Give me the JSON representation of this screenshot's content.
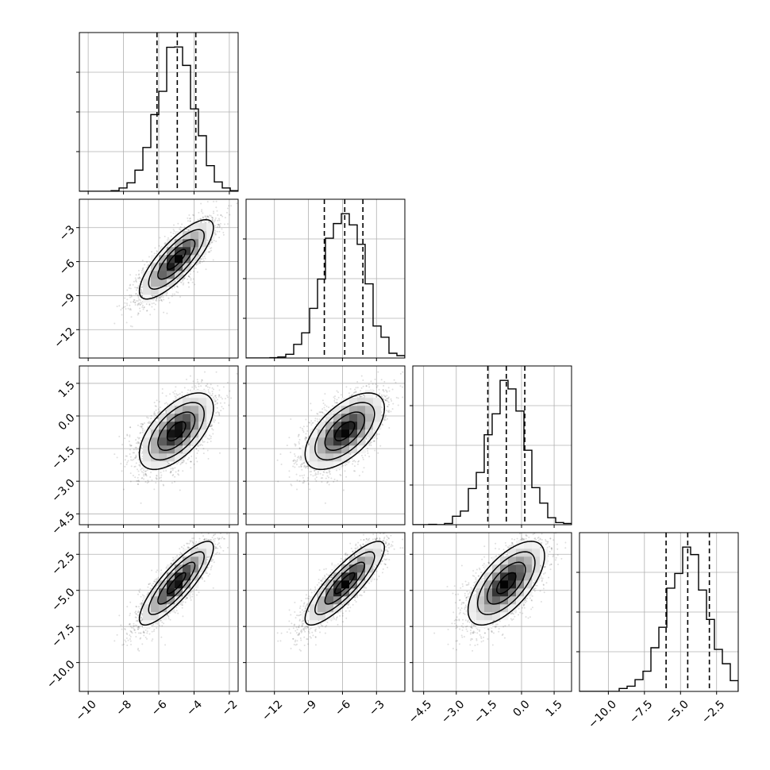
{
  "chart_data": {
    "type": "corner",
    "n_params": 4,
    "quantile_lines": "dashed",
    "grid": true,
    "params": [
      {
        "range": [
          -10.5,
          -1.5
        ],
        "x_ticks": [
          -10,
          -8,
          -6,
          -4,
          -2
        ],
        "x_tick_labels": [
          "−10",
          "−8",
          "−6",
          "−4",
          "−2"
        ],
        "mean": -5.0,
        "sd": 1.05,
        "quantiles": [
          -6.1,
          -4.95,
          -3.9
        ]
      },
      {
        "range": [
          -14.5,
          -0.5
        ],
        "x_ticks": [
          -12,
          -9,
          -6,
          -3
        ],
        "x_tick_labels": [
          "−12",
          "−9",
          "−6",
          "−3"
        ],
        "y_ticks": [
          -12,
          -9,
          -6,
          -3
        ],
        "y_tick_labels": [
          "−12",
          "−9",
          "−6",
          "−3"
        ],
        "mean": -5.8,
        "sd": 1.75,
        "quantiles": [
          -7.6,
          -5.8,
          -4.2
        ]
      },
      {
        "range": [
          -5.0,
          2.3
        ],
        "x_ticks": [
          -4.5,
          -3.0,
          -1.5,
          0.0,
          1.5
        ],
        "x_tick_labels": [
          "−4.5",
          "−3.0",
          "−1.5",
          "0.0",
          "1.5"
        ],
        "y_ticks": [
          -4.5,
          -3.0,
          -1.5,
          0.0,
          1.5
        ],
        "y_tick_labels": [
          "−4.5",
          "−3.0",
          "−1.5",
          "0.0",
          "1.5"
        ],
        "mean": -0.7,
        "sd": 0.88,
        "quantiles": [
          -1.55,
          -0.7,
          0.15
        ]
      },
      {
        "range": [
          -12.0,
          -1.0
        ],
        "x_ticks": [
          -10.0,
          -7.5,
          -5.0,
          -2.5
        ],
        "x_tick_labels": [
          "−10.0",
          "−7.5",
          "−5.0",
          "−2.5"
        ],
        "y_ticks": [
          -10.0,
          -7.5,
          -5.0,
          -2.5
        ],
        "y_tick_labels": [
          "−10.0",
          "−7.5",
          "−5.0",
          "−2.5"
        ],
        "mean": -4.5,
        "sd": 1.45,
        "quantiles": [
          -6.0,
          -4.5,
          -3.0
        ]
      }
    ],
    "correlations": [
      [
        1.0,
        0.8,
        0.6,
        0.85
      ],
      [
        0.8,
        1.0,
        0.6,
        0.85
      ],
      [
        0.6,
        0.6,
        1.0,
        0.65
      ],
      [
        0.85,
        0.85,
        0.65,
        1.0
      ]
    ]
  }
}
